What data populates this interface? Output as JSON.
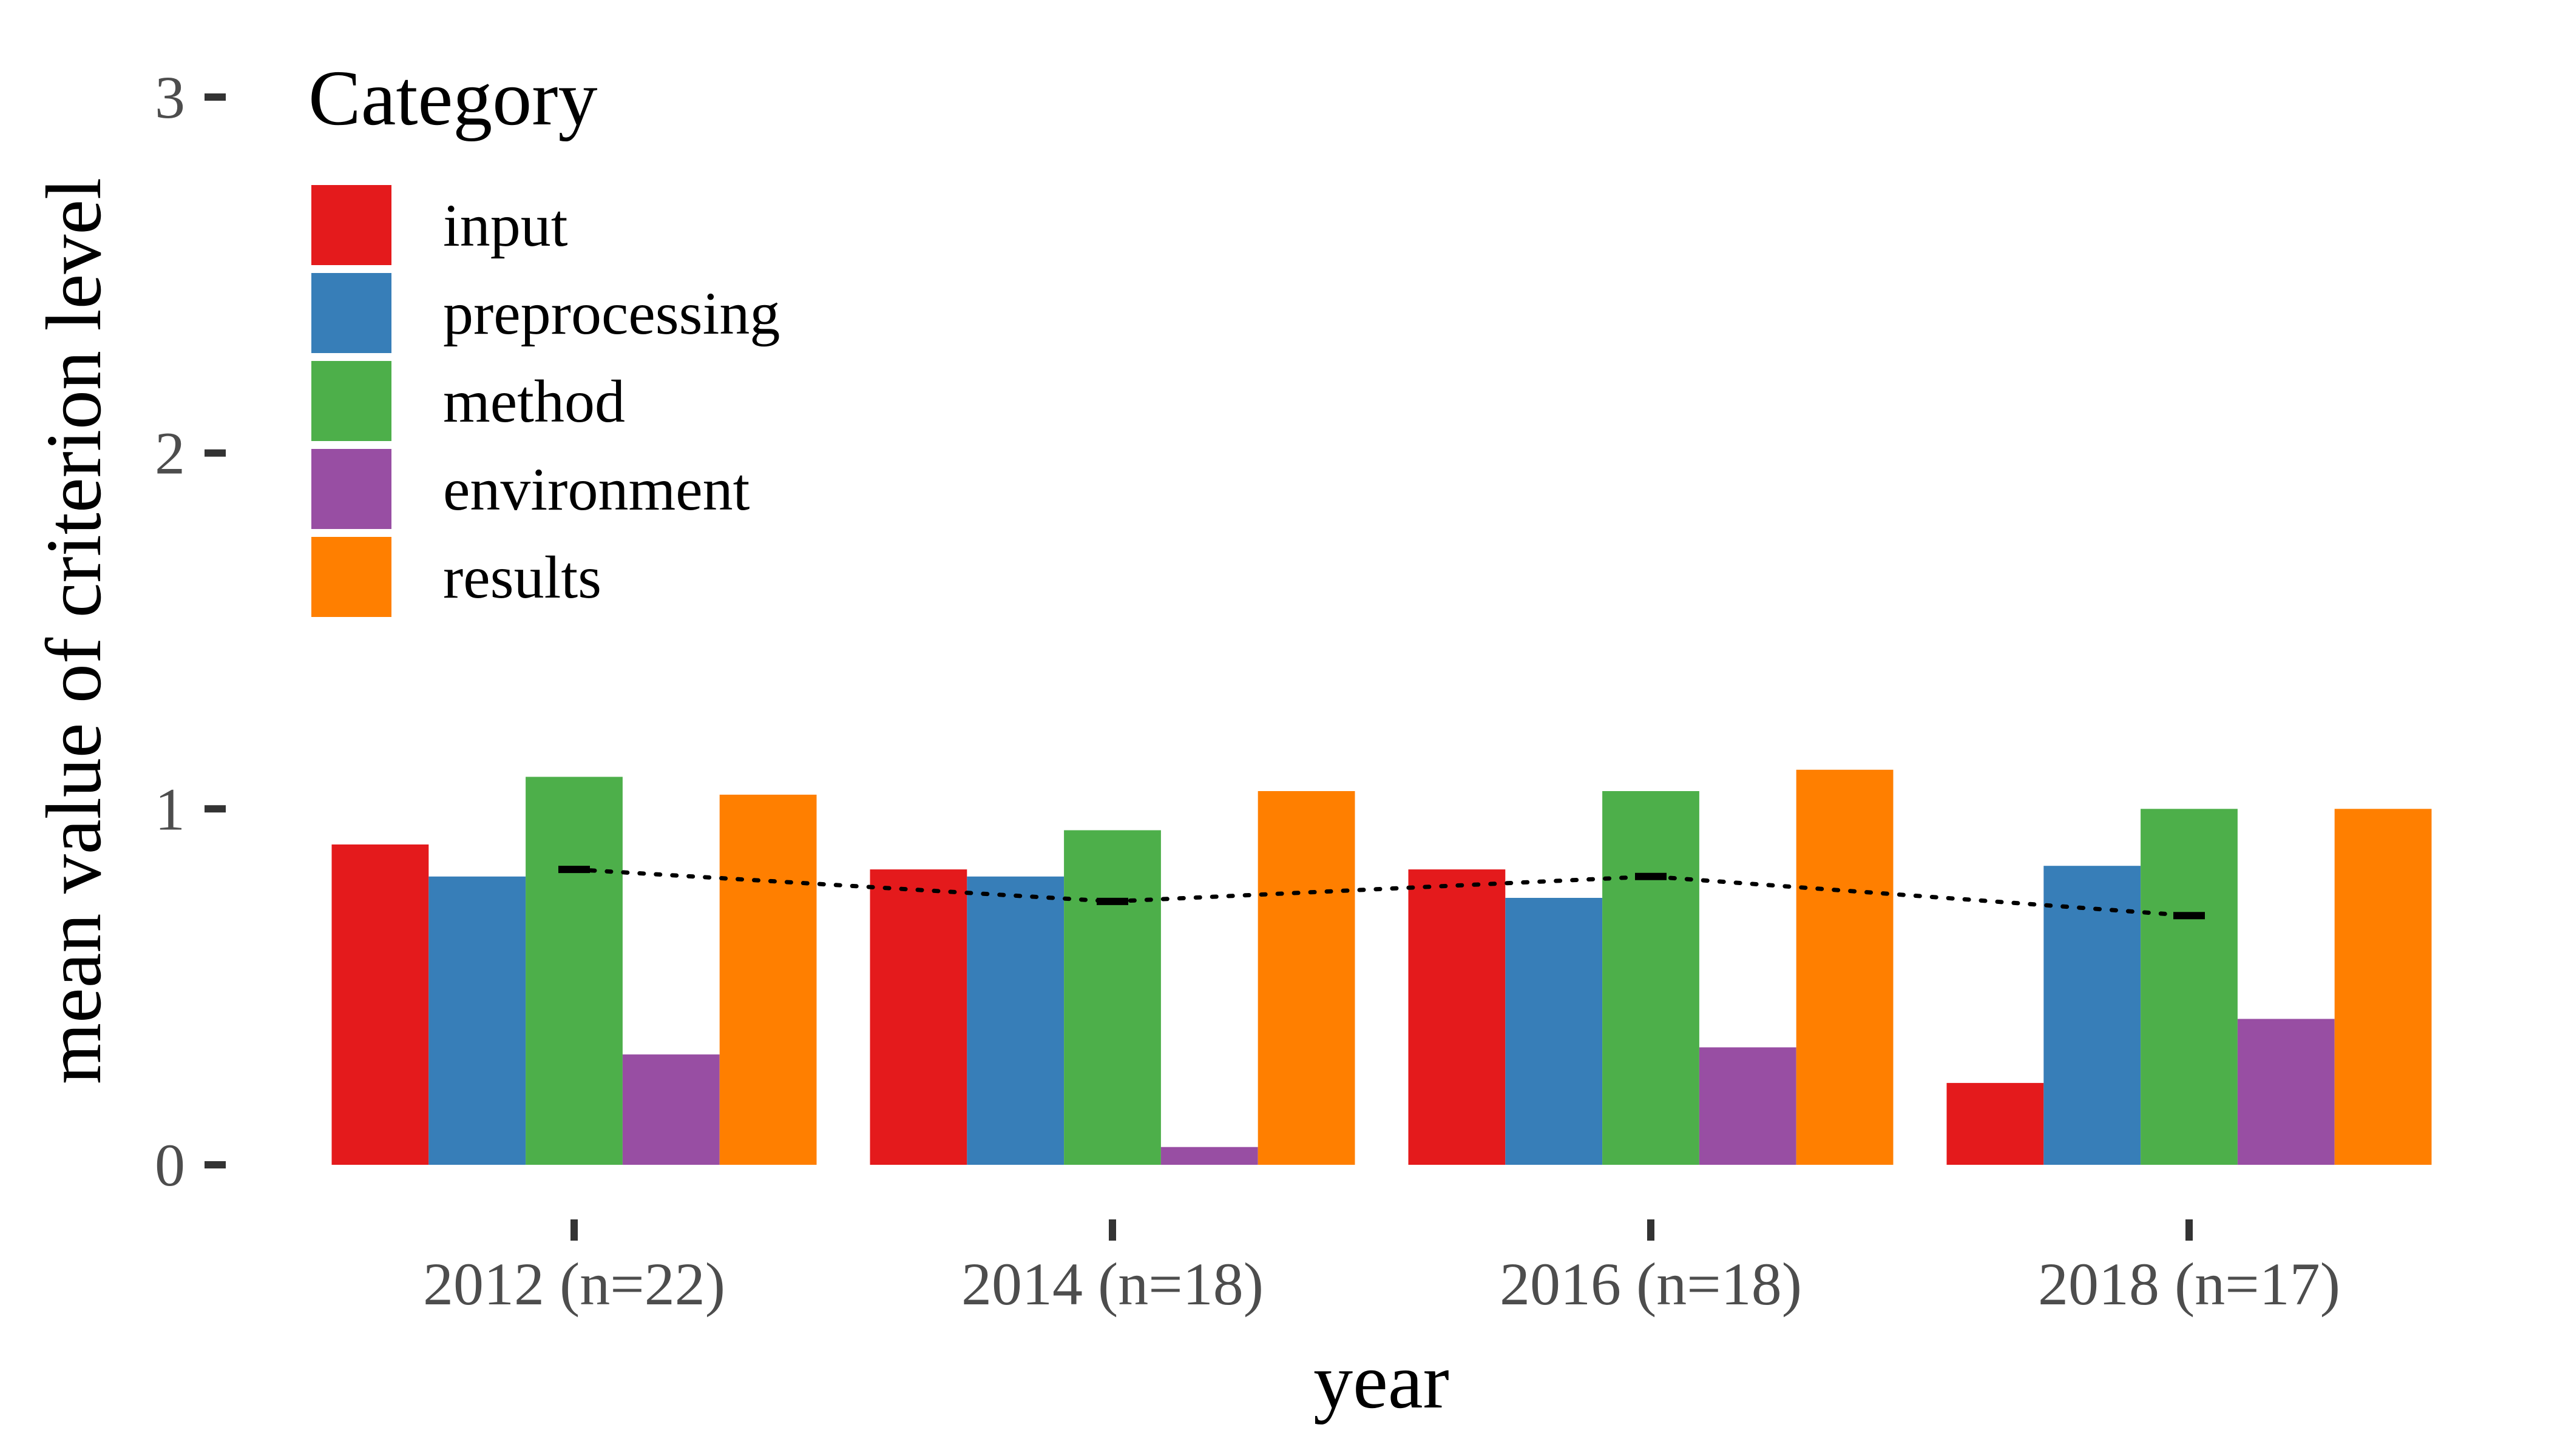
{
  "chart_data": {
    "type": "bar",
    "xlabel": "year",
    "ylabel": "mean value of criterion level",
    "ylim": [
      0,
      3
    ],
    "yticks": [
      "0",
      "1",
      "2",
      "3"
    ],
    "categories": [
      "2012 (n=22)",
      "2014 (n=18)",
      "2016 (n=18)",
      "2018 (n=17)"
    ],
    "legend": {
      "title": "Category",
      "position": "top-left"
    },
    "series": [
      {
        "name": "input",
        "color": "#E41A1C",
        "values": [
          0.9,
          0.83,
          0.83,
          0.23
        ]
      },
      {
        "name": "preprocessing",
        "color": "#377EB8",
        "values": [
          0.81,
          0.81,
          0.75,
          0.84
        ]
      },
      {
        "name": "method",
        "color": "#4DAF4A",
        "values": [
          1.09,
          0.94,
          1.05,
          1.0
        ]
      },
      {
        "name": "environment",
        "color": "#984EA3",
        "values": [
          0.31,
          0.05,
          0.33,
          0.41
        ]
      },
      {
        "name": "results",
        "color": "#FF7F00",
        "values": [
          1.04,
          1.05,
          1.11,
          1.0
        ]
      }
    ],
    "mean_markers": {
      "values": [
        0.83,
        0.74,
        0.81,
        0.7
      ],
      "line_style": "dotted",
      "color": "#000000"
    },
    "grid": false
  }
}
